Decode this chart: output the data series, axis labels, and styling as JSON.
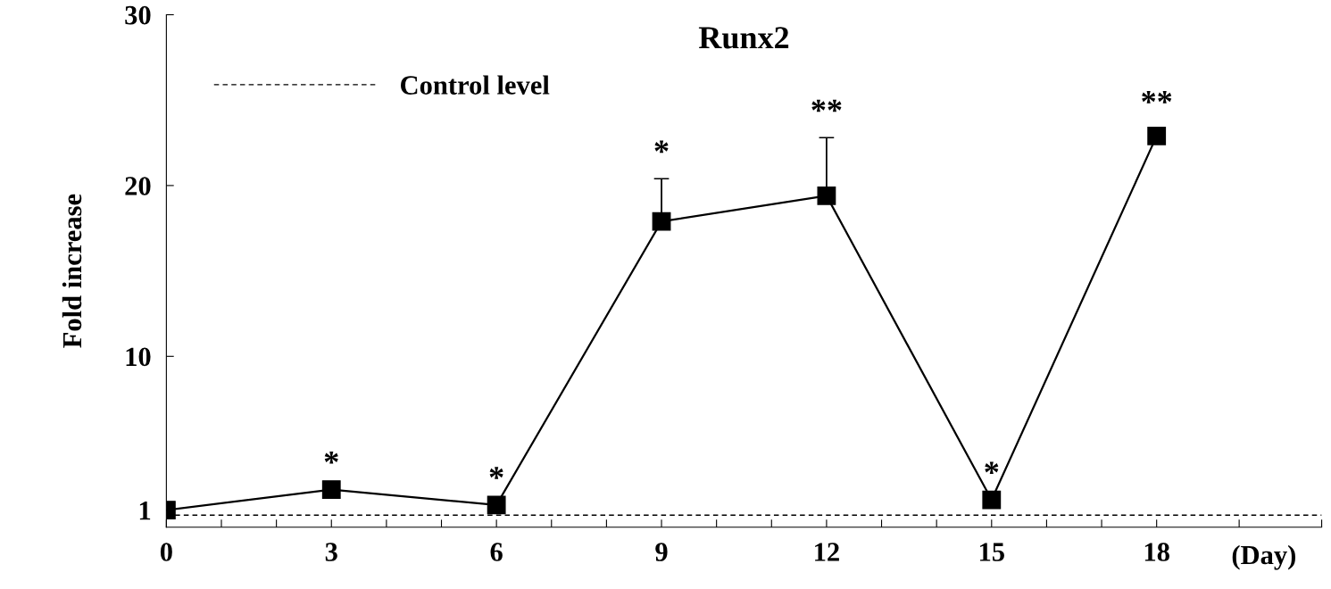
{
  "chart_data": {
    "type": "line",
    "title": "Runx2",
    "ylabel": "Fold increase",
    "xlabel": "(Day)",
    "x": [
      0,
      3,
      6,
      9,
      12,
      15,
      18
    ],
    "series": [
      {
        "color": "#000000",
        "values": [
          1.0,
          2.2,
          1.3,
          17.9,
          19.4,
          1.6,
          22.9
        ],
        "errors": [
          null,
          null,
          null,
          2.5,
          3.4,
          null,
          0.4
        ]
      }
    ],
    "marker": "square",
    "line_style": "solid",
    "xlim": [
      0,
      21
    ],
    "ylim": [
      0,
      30
    ],
    "xticks": [
      0,
      {
        "value": 1,
        "label": null
      },
      {
        "value": 2,
        "label": null
      },
      3,
      {
        "value": 4,
        "label": null
      },
      {
        "value": 5,
        "label": null
      },
      6,
      {
        "value": 7,
        "label": null
      },
      {
        "value": 8,
        "label": null
      },
      9,
      {
        "value": 10,
        "label": null
      },
      {
        "value": 11,
        "label": null
      },
      12,
      {
        "value": 13,
        "label": null
      },
      {
        "value": 14,
        "label": null
      },
      15,
      {
        "value": 16,
        "label": null
      },
      {
        "value": 17,
        "label": null
      },
      18,
      {
        "value": 19.5,
        "label": null
      },
      {
        "value": 21,
        "label": null
      }
    ],
    "yticks": [
      1,
      10,
      20,
      30
    ],
    "ref_lines": [
      {
        "axis": "y",
        "value": 0.7,
        "label": "Control level",
        "color": "#000000",
        "line_style": "dashed"
      }
    ],
    "legend": "top left",
    "grid": false,
    "annotations": [
      {
        "text": "*",
        "x": 3,
        "y": 2.2
      },
      {
        "text": "*",
        "x": 6,
        "y": 1.3
      },
      {
        "text": "*",
        "x": 9,
        "y": 17.9
      },
      {
        "text": "**",
        "x": 12,
        "y": 19.4
      },
      {
        "text": "*",
        "x": 15,
        "y": 1.6
      },
      {
        "text": "**",
        "x": 18,
        "y": 22.9
      }
    ]
  }
}
